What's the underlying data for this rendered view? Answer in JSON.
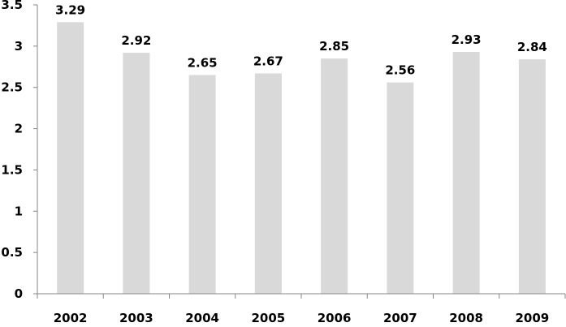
{
  "chart_data": {
    "type": "bar",
    "title": "",
    "xlabel": "",
    "ylabel": "",
    "categories": [
      "2002",
      "2003",
      "2004",
      "2005",
      "2006",
      "2007",
      "2008",
      "2009"
    ],
    "values": [
      3.29,
      2.92,
      2.65,
      2.67,
      2.85,
      2.56,
      2.93,
      2.84
    ],
    "data_labels": [
      "3.29",
      "2.92",
      "2.65",
      "2.67",
      "2.85",
      "2.56",
      "2.93",
      "2.84"
    ],
    "ylim": [
      0,
      3.5
    ],
    "yticks": [
      "0",
      "0.5",
      "1",
      "1.5",
      "2",
      "2.5",
      "3",
      "3.5"
    ],
    "grid": false,
    "legend": "none",
    "colors": {
      "bar": "#d9d9d9",
      "axis": "#868686"
    }
  }
}
